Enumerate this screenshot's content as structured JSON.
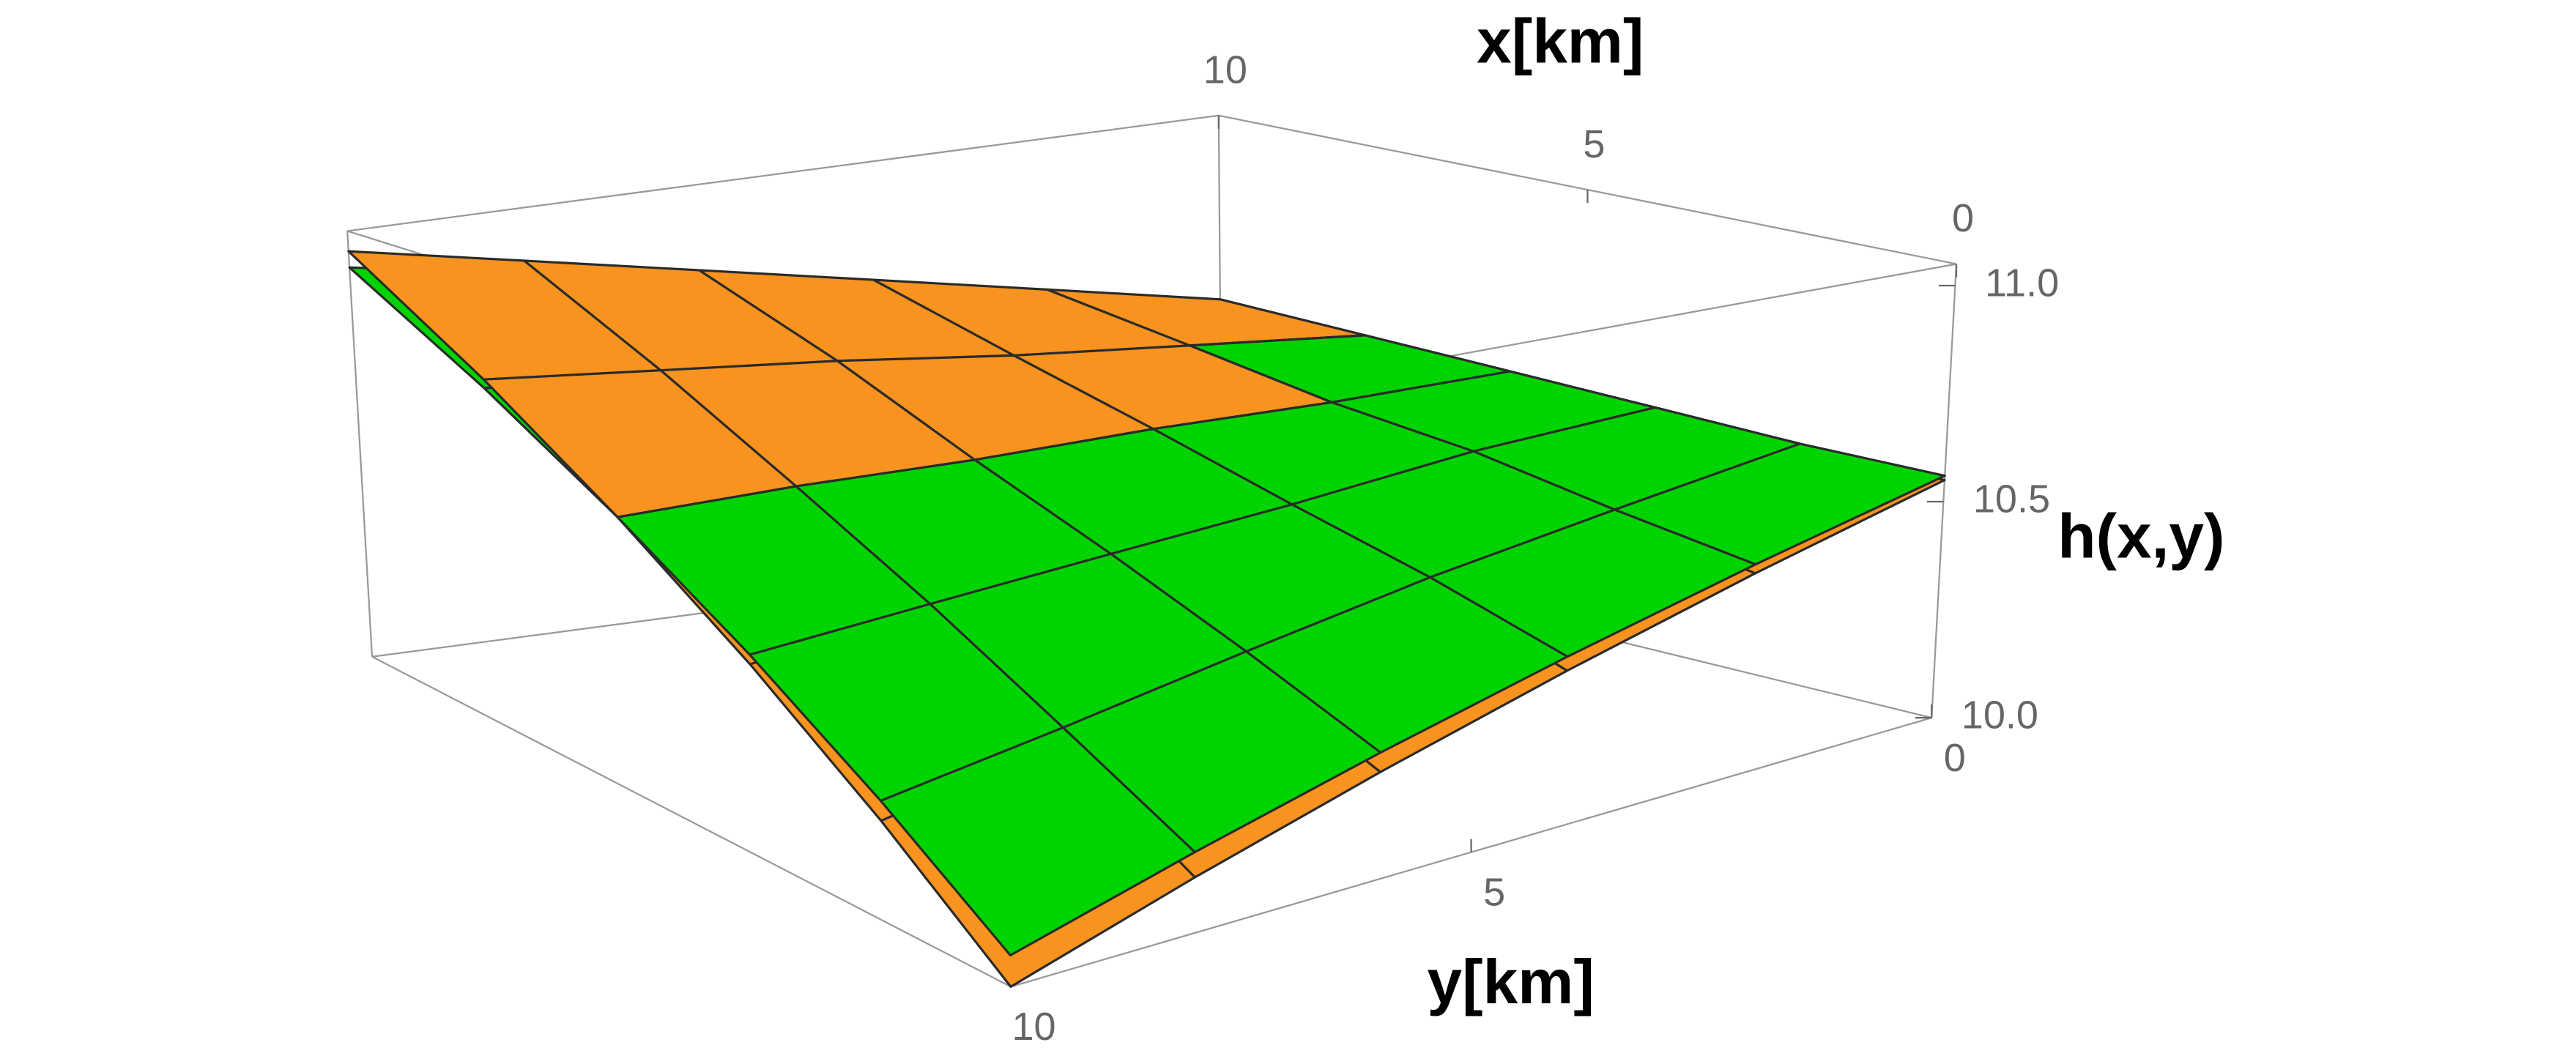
{
  "chart_data": {
    "type": "surface",
    "x_label": "x[km]",
    "y_label": "y[km]",
    "z_label": "h(x,y)",
    "x": [
      0,
      2,
      4,
      6,
      8,
      10
    ],
    "y": [
      0,
      2,
      4,
      6,
      8,
      10
    ],
    "xlim": [
      0,
      10
    ],
    "ylim": [
      0,
      10
    ],
    "zlim": [
      10,
      11.05
    ],
    "xticks": [
      0,
      5,
      10
    ],
    "yticks": [
      0,
      5,
      10
    ],
    "zticks": [
      {
        "value": 10,
        "label": "10.0"
      },
      10.5,
      {
        "value": 11,
        "label": "11.0"
      }
    ],
    "series": [
      {
        "color": "#f7931e",
        "z": [
          [
            10.55,
            10.56,
            10.57,
            10.58,
            10.59,
            10.6
          ],
          [
            10.44,
            10.49,
            10.54,
            10.58,
            10.63,
            10.68
          ],
          [
            10.33,
            10.42,
            10.5,
            10.59,
            10.67,
            10.76
          ],
          [
            10.22,
            10.34,
            10.47,
            10.59,
            10.72,
            10.84
          ],
          [
            10.11,
            10.27,
            10.43,
            10.6,
            10.76,
            10.92
          ],
          [
            10.0,
            10.2,
            10.4,
            10.6,
            10.8,
            11.0
          ]
        ]
      },
      {
        "color": "#00d400",
        "z": [
          [
            10.56,
            10.56,
            10.57,
            10.58,
            10.59,
            10.6
          ],
          [
            10.46,
            10.5,
            10.55,
            10.58,
            10.63,
            10.67
          ],
          [
            10.36,
            10.44,
            10.51,
            10.59,
            10.66,
            10.74
          ],
          [
            10.26,
            10.37,
            10.48,
            10.59,
            10.71,
            10.82
          ],
          [
            10.16,
            10.3,
            10.45,
            10.6,
            10.74,
            10.89
          ],
          [
            10.06,
            10.24,
            10.42,
            10.6,
            10.78,
            10.96
          ]
        ]
      }
    ]
  }
}
